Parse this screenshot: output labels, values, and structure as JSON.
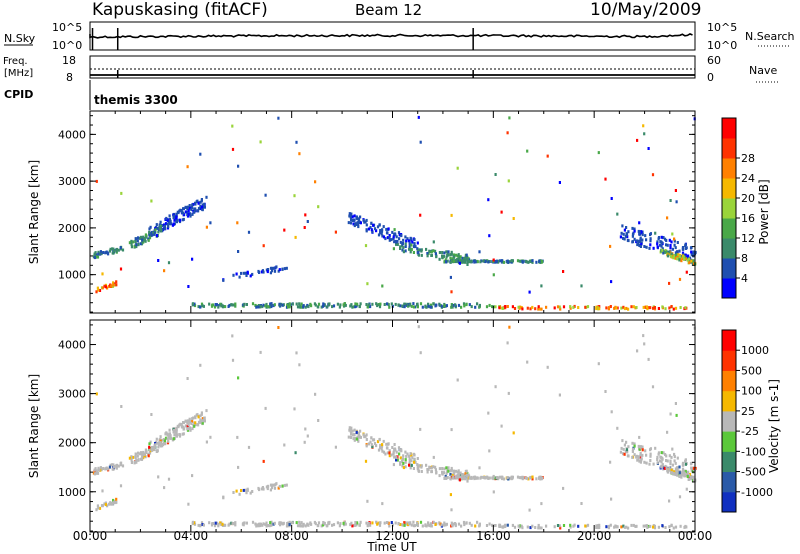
{
  "header": {
    "station": "Kapuskasing (fitACF)",
    "beam": "Beam 12",
    "date": "10/May/2009"
  },
  "top_panels": {
    "nsky": {
      "label": "N.Sky",
      "tick_top": "10^5",
      "tick_bottom": "10^0",
      "right_label": "N.Search",
      "right_tick_top": "10^5",
      "right_tick_bottom": "10^0"
    },
    "freq": {
      "label_line1": "Freq.",
      "label_line2": "[MHz]",
      "tick_top": "18",
      "tick_bottom": "8",
      "right_label": "Nave",
      "right_tick_top": "60",
      "right_tick_bottom": "0"
    },
    "cpid": {
      "label": "CPID",
      "mode": "themis 3300"
    }
  },
  "chart_data": [
    {
      "type": "heatmap",
      "name": "Power",
      "xlabel": "Time UT",
      "ylabel": "Slant Range [km]",
      "x_ticks": [
        "00:00",
        "04:00",
        "08:00",
        "12:00",
        "16:00",
        "20:00",
        "00:00"
      ],
      "y_ticks": [
        1000,
        2000,
        3000,
        4000
      ],
      "xlim_hours": [
        0,
        24
      ],
      "ylim_km": [
        180,
        4500
      ],
      "colorbar": {
        "label": "Power [dB]",
        "ticks": [
          "4",
          "8",
          "12",
          "16",
          "20",
          "24",
          "28"
        ],
        "colors": [
          "#0000ff",
          "#1f4fb0",
          "#3a8a6a",
          "#49a848",
          "#9ad43a",
          "#f5b800",
          "#ff8000",
          "#ff3300",
          "#ff0000"
        ]
      }
    },
    {
      "type": "heatmap",
      "name": "Velocity",
      "xlabel": "Time UT",
      "ylabel": "Slant Range [km]",
      "x_ticks": [
        "00:00",
        "04:00",
        "08:00",
        "12:00",
        "16:00",
        "20:00",
        "00:00"
      ],
      "y_ticks": [
        1000,
        2000,
        3000,
        4000
      ],
      "xlim_hours": [
        0,
        24
      ],
      "ylim_km": [
        180,
        4500
      ],
      "colorbar": {
        "label": "Velocity [m s-1]",
        "ticks": [
          "1000",
          "500",
          "100",
          "25",
          "-25",
          "-100",
          "-500",
          "-1000"
        ],
        "colors": [
          "#1030c0",
          "#2a5aa8",
          "#3a8a6a",
          "#5bc83a",
          "#b8b8b8",
          "#f5b800",
          "#ff8000",
          "#ff3300",
          "#ff0000"
        ]
      }
    }
  ]
}
